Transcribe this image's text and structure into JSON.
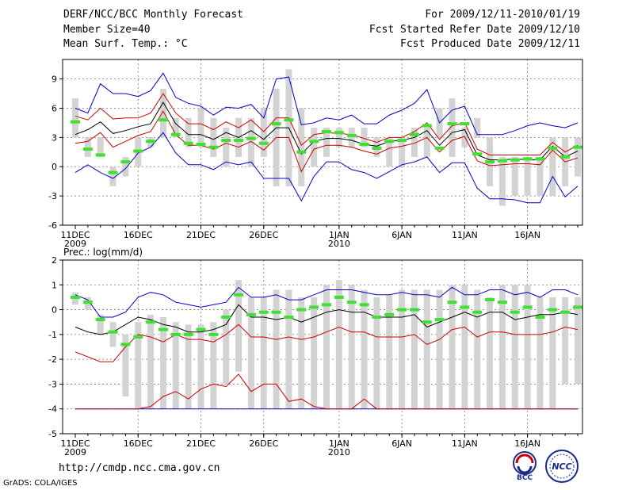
{
  "header": {
    "title": "DERF/NCC/BCC Monthly Forecast",
    "member_size": "Member Size=40",
    "variable": "Mean Surf. Temp.: °C",
    "forecast_period": "For 2009/12/11-2010/01/19",
    "started": "Fcst Started Refer Date 2009/12/10",
    "produced": "Fcst Produced Date 2009/12/11"
  },
  "footer": {
    "url": "http://cmdp.ncc.cma.gov.cn",
    "grads_credit": "GrADS: COLA/IGES",
    "logo_bcc_text": "BCC",
    "logo_ncc_text": "NCC"
  },
  "colors": {
    "box": "#d3d3d3",
    "median": "#40e030",
    "mean": "#000000",
    "inner": "#cc0000",
    "outer": "#0000cc"
  },
  "chart_data": [
    {
      "type": "box",
      "title": "Mean Surf. Temp.: °C",
      "ylim": [
        -6,
        11
      ],
      "yticks": [
        -6,
        -3,
        0,
        3,
        6,
        9
      ],
      "days": 40,
      "xticks": [
        {
          "day": 0,
          "label": "11DEC",
          "sublabel": "2009"
        },
        {
          "day": 5,
          "label": "16DEC",
          "sublabel": ""
        },
        {
          "day": 10,
          "label": "21DEC",
          "sublabel": ""
        },
        {
          "day": 15,
          "label": "26DEC",
          "sublabel": ""
        },
        {
          "day": 21,
          "label": "1JAN",
          "sublabel": "2010"
        },
        {
          "day": 26,
          "label": "6JAN",
          "sublabel": ""
        },
        {
          "day": 31,
          "label": "11JAN",
          "sublabel": ""
        },
        {
          "day": 36,
          "label": "16JAN",
          "sublabel": ""
        }
      ],
      "series": [
        {
          "name": "box_low",
          "values": [
            3,
            1,
            1,
            -2,
            -1,
            0,
            2,
            3,
            3,
            2,
            2,
            1,
            0,
            1,
            0,
            1,
            -2,
            -2,
            -2,
            0,
            1,
            2,
            2,
            2,
            1,
            0,
            0,
            1,
            1,
            3,
            1,
            2,
            3,
            -2,
            -4,
            -3,
            -3,
            -3,
            -3,
            -2,
            -1
          ]
        },
        {
          "name": "box_high",
          "values": [
            7,
            3,
            3,
            0,
            1,
            3,
            3,
            8,
            5,
            5,
            6,
            5,
            4,
            5,
            5,
            6,
            8,
            10,
            6,
            4,
            4,
            4,
            4,
            4,
            3,
            3,
            3,
            4,
            4,
            6,
            7,
            4,
            5,
            3,
            1,
            1,
            1,
            1,
            3,
            3,
            3
          ]
        },
        {
          "name": "median",
          "values": [
            4.6,
            1.8,
            1.2,
            -0.6,
            0.5,
            1.6,
            2.6,
            4.8,
            3.3,
            2.4,
            2.3,
            2.0,
            2.7,
            2.7,
            2.9,
            2.4,
            4.4,
            4.8,
            1.5,
            2.6,
            3.6,
            3.5,
            3.2,
            2.3,
            1.9,
            2.6,
            2.7,
            3.3,
            4.2,
            1.9,
            4.4,
            4.4,
            1.3,
            0.5,
            0.6,
            0.7,
            0.8,
            0.8,
            1.9,
            1.0,
            2.0
          ]
        },
        {
          "name": "ensemble_mean",
          "values": [
            3.3,
            3.8,
            4.6,
            3.4,
            3.7,
            4.1,
            4.4,
            6.6,
            4.4,
            3.3,
            3.3,
            2.8,
            3.5,
            3.0,
            3.7,
            2.8,
            4.0,
            4.0,
            1.3,
            2.6,
            2.9,
            2.9,
            2.7,
            2.3,
            2.1,
            2.6,
            2.7,
            3.0,
            3.7,
            2.2,
            3.5,
            3.8,
            1.2,
            0.7,
            0.7,
            0.8,
            0.7,
            0.7,
            2.1,
            1.0,
            1.6
          ]
        },
        {
          "name": "upper_inner",
          "values": [
            5.2,
            4.8,
            6.0,
            4.9,
            5.0,
            5.0,
            5.5,
            7.5,
            5.5,
            4.4,
            4.4,
            3.8,
            4.6,
            4.0,
            4.8,
            3.6,
            5.0,
            5.0,
            2.2,
            3.3,
            3.5,
            3.4,
            3.3,
            2.9,
            2.5,
            3.0,
            3.0,
            3.6,
            4.5,
            2.8,
            4.2,
            4.5,
            1.8,
            1.2,
            1.2,
            1.2,
            1.2,
            1.2,
            2.5,
            1.5,
            2.2
          ]
        },
        {
          "name": "lower_inner",
          "values": [
            2.4,
            2.6,
            3.5,
            2.0,
            2.6,
            3.2,
            3.6,
            5.7,
            3.3,
            2.2,
            2.2,
            1.8,
            2.4,
            2.0,
            2.6,
            1.7,
            3.0,
            3.0,
            -0.5,
            1.8,
            2.2,
            2.2,
            2.0,
            1.6,
            1.3,
            1.9,
            2.1,
            2.4,
            3.0,
            1.5,
            2.7,
            3.1,
            0.6,
            0.1,
            0.2,
            0.3,
            0.3,
            0.2,
            1.7,
            0.5,
            0.9
          ]
        },
        {
          "name": "upper_outer",
          "values": [
            6.0,
            5.5,
            8.5,
            7.5,
            7.5,
            7.2,
            7.8,
            9.6,
            7.1,
            6.5,
            6.2,
            5.3,
            6.1,
            6.0,
            6.4,
            5.0,
            9.0,
            9.2,
            4.3,
            4.5,
            5.0,
            4.8,
            5.3,
            4.4,
            4.4,
            5.3,
            5.8,
            6.5,
            7.9,
            4.5,
            5.8,
            6.2,
            3.3,
            3.3,
            3.3,
            3.7,
            4.2,
            4.5,
            4.2,
            4.0,
            4.5
          ]
        },
        {
          "name": "lower_outer",
          "values": [
            -0.6,
            0.2,
            -0.6,
            -1.2,
            -0.2,
            1.4,
            2.0,
            3.5,
            1.4,
            0.2,
            0.2,
            -0.3,
            0.5,
            0.2,
            0.5,
            -1.2,
            -1.2,
            -1.2,
            -3.5,
            -1.0,
            0.5,
            0.5,
            -0.3,
            -0.6,
            -1.2,
            -0.5,
            0.2,
            0.5,
            1.0,
            -0.6,
            0.4,
            0.4,
            -2.2,
            -3.3,
            -3.3,
            -3.4,
            -3.7,
            -3.7,
            -1.0,
            -3.1,
            -2.0
          ]
        }
      ]
    },
    {
      "type": "box",
      "title": "Prec.: log(mm/d)",
      "ylim": [
        -5,
        2
      ],
      "yticks": [
        -5,
        -4,
        -3,
        -2,
        -1,
        0,
        1,
        2
      ],
      "days": 40,
      "xticks": [
        {
          "day": 0,
          "label": "11DEC",
          "sublabel": "2009"
        },
        {
          "day": 5,
          "label": "16DEC",
          "sublabel": ""
        },
        {
          "day": 10,
          "label": "21DEC",
          "sublabel": ""
        },
        {
          "day": 15,
          "label": "26DEC",
          "sublabel": ""
        },
        {
          "day": 21,
          "label": "1JAN",
          "sublabel": "2010"
        },
        {
          "day": 26,
          "label": "6JAN",
          "sublabel": ""
        },
        {
          "day": 31,
          "label": "11JAN",
          "sublabel": ""
        },
        {
          "day": 36,
          "label": "16JAN",
          "sublabel": ""
        }
      ],
      "series": [
        {
          "name": "box_low",
          "values": [
            0.2,
            0.0,
            -1.0,
            -1.5,
            -3.5,
            -4.0,
            -4.0,
            -4.0,
            -4.0,
            -4.0,
            -4.0,
            -4.0,
            -3.0,
            -2.5,
            -4.0,
            -4.0,
            -4.0,
            -4.0,
            -4.0,
            -4.0,
            -4.0,
            -4.0,
            -4.0,
            -4.0,
            -4.0,
            -4.0,
            -4.0,
            -4.0,
            -4.0,
            -4.0,
            -4.0,
            -4.0,
            -4.0,
            -4.0,
            -4.0,
            -4.0,
            -4.0,
            -4.0,
            -4.0,
            -3.0,
            -3.0
          ]
        },
        {
          "name": "box_high",
          "values": [
            0.7,
            0.5,
            -0.2,
            -0.5,
            -1.0,
            -0.5,
            -0.2,
            -0.3,
            -0.5,
            -0.6,
            -0.6,
            -0.5,
            0.0,
            1.2,
            0.5,
            0.5,
            0.8,
            0.8,
            0.5,
            0.5,
            1.0,
            1.2,
            1.0,
            0.8,
            0.5,
            0.6,
            0.8,
            0.8,
            0.8,
            0.8,
            1.0,
            1.0,
            0.8,
            0.5,
            1.0,
            1.0,
            1.0,
            0.5,
            0.5,
            0.5,
            0.5
          ]
        },
        {
          "name": "median",
          "values": [
            0.5,
            0.3,
            -0.4,
            -0.9,
            -1.4,
            -1.1,
            -0.5,
            -0.8,
            -1.0,
            -1.0,
            -0.8,
            -1.0,
            -0.3,
            0.6,
            -0.2,
            -0.1,
            -0.1,
            -0.3,
            0.0,
            0.1,
            0.2,
            0.5,
            0.3,
            0.2,
            -0.3,
            -0.2,
            0.0,
            0.0,
            -0.5,
            -0.4,
            0.3,
            0.1,
            -0.1,
            0.4,
            0.3,
            -0.1,
            0.1,
            -0.3,
            0.0,
            -0.1,
            0.1
          ]
        },
        {
          "name": "ensemble_mean",
          "values": [
            -0.7,
            -0.9,
            -1.0,
            -0.9,
            -0.6,
            -0.3,
            -0.4,
            -0.6,
            -0.7,
            -0.9,
            -0.9,
            -0.8,
            -0.6,
            0.2,
            -0.3,
            -0.3,
            -0.4,
            -0.3,
            -0.5,
            -0.3,
            -0.1,
            0.0,
            -0.1,
            -0.1,
            -0.3,
            -0.3,
            -0.3,
            -0.2,
            -0.7,
            -0.5,
            -0.3,
            -0.1,
            -0.3,
            -0.1,
            -0.1,
            -0.4,
            -0.3,
            -0.2,
            -0.2,
            -0.1,
            -0.2
          ]
        },
        {
          "name": "upper_inner",
          "values": [
            -1.7,
            -1.9,
            -2.1,
            -2.1,
            -1.5,
            -1.0,
            -1.1,
            -1.3,
            -1.0,
            -1.2,
            -1.2,
            -1.3,
            -1.0,
            -0.6,
            -1.1,
            -1.1,
            -1.2,
            -1.1,
            -1.2,
            -1.1,
            -0.9,
            -0.7,
            -0.9,
            -0.9,
            -1.1,
            -1.1,
            -1.1,
            -1.0,
            -1.4,
            -1.2,
            -0.8,
            -0.7,
            -1.1,
            -0.9,
            -0.9,
            -1.0,
            -1.0,
            -1.0,
            -0.9,
            -0.7,
            -0.8
          ]
        },
        {
          "name": "lower_inner",
          "values": [
            -4.0,
            -4.0,
            -4.0,
            -4.0,
            -4.0,
            -4.0,
            -3.9,
            -3.5,
            -3.3,
            -3.6,
            -3.2,
            -3.0,
            -3.1,
            -2.6,
            -3.3,
            -3.0,
            -3.0,
            -3.7,
            -3.6,
            -3.9,
            -4.0,
            -4.0,
            -4.0,
            -3.6,
            -4.0,
            -4.0,
            -4.0,
            -4.0,
            -4.0,
            -4.0,
            -4.0,
            -4.0,
            -4.0,
            -4.0,
            -4.0,
            -4.0,
            -4.0,
            -4.0,
            -4.0,
            -4.0,
            -4.0
          ]
        },
        {
          "name": "upper_outer",
          "values": [
            0.6,
            0.4,
            -0.3,
            -0.3,
            -0.1,
            0.5,
            0.7,
            0.6,
            0.3,
            0.2,
            0.1,
            0.2,
            0.3,
            0.9,
            0.5,
            0.5,
            0.6,
            0.4,
            0.4,
            0.6,
            0.8,
            0.8,
            0.8,
            0.7,
            0.6,
            0.6,
            0.7,
            0.6,
            0.6,
            0.5,
            0.9,
            0.6,
            0.6,
            0.8,
            0.8,
            0.6,
            0.7,
            0.5,
            0.8,
            0.8,
            0.6
          ]
        },
        {
          "name": "lower_outer",
          "values": [
            -4.0,
            -4.0,
            -4.0,
            -4.0,
            -4.0,
            -4.0,
            -4.0,
            -4.0,
            -4.0,
            -4.0,
            -4.0,
            -4.0,
            -4.0,
            -4.0,
            -4.0,
            -4.0,
            -4.0,
            -4.0,
            -4.0,
            -4.0,
            -4.0,
            -4.0,
            -4.0,
            -4.0,
            -4.0,
            -4.0,
            -4.0,
            -4.0,
            -4.0,
            -4.0,
            -4.0,
            -4.0,
            -4.0,
            -4.0,
            -4.0,
            -4.0,
            -4.0,
            -4.0,
            -4.0,
            -4.0,
            -4.0
          ]
        }
      ]
    }
  ]
}
